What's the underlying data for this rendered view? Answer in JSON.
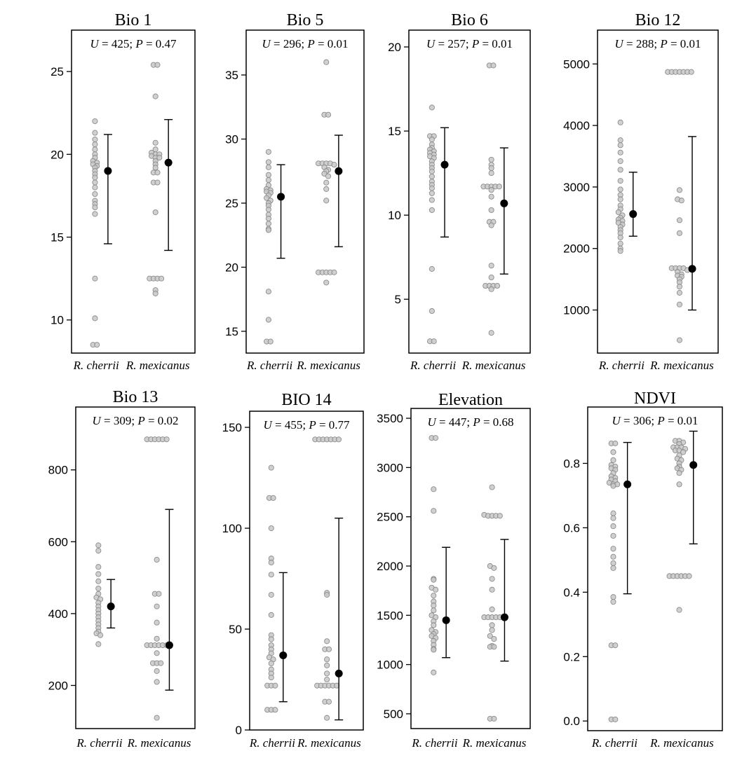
{
  "chart_data": [
    {
      "type": "scatter",
      "title": "Bio 1",
      "stat": {
        "u_label": "U",
        "u_value": "425",
        "p_label": "P",
        "p_value": "0.47"
      },
      "categories": [
        "R. cherrii",
        "R. mexicanus"
      ],
      "ylim": [
        8,
        27.5
      ],
      "yticks": [
        10,
        15,
        20,
        25
      ],
      "groups": [
        {
          "mean": 19.0,
          "error_low": 14.6,
          "error_high": 21.2,
          "points": [
            22.0,
            21.3,
            20.9,
            20.6,
            20.3,
            20.0,
            19.8,
            19.6,
            19.5,
            19.4,
            19.3,
            19.2,
            19.0,
            18.8,
            18.6,
            18.3,
            18.0,
            17.6,
            17.2,
            17.0,
            16.8,
            16.4,
            12.5,
            10.1,
            8.5,
            8.5
          ]
        },
        {
          "mean": 19.5,
          "error_low": 14.2,
          "error_high": 22.1,
          "points": [
            25.4,
            25.4,
            23.5,
            20.7,
            20.3,
            20.1,
            20.0,
            20.0,
            19.9,
            19.8,
            19.8,
            19.6,
            19.4,
            19.2,
            18.9,
            18.9,
            18.3,
            18.3,
            16.5,
            12.5,
            12.5,
            12.5,
            12.5,
            11.8,
            11.6
          ]
        }
      ]
    },
    {
      "type": "scatter",
      "title": "Bio 5",
      "stat": {
        "u_label": "U",
        "u_value": "296",
        "p_label": "P",
        "p_value": "0.01"
      },
      "categories": [
        "R. cherrii",
        "R. mexicanus"
      ],
      "ylim": [
        13.3,
        38.5
      ],
      "yticks": [
        15,
        20,
        25,
        30,
        35
      ],
      "groups": [
        {
          "mean": 25.5,
          "error_low": 20.7,
          "error_high": 28.0,
          "points": [
            29.0,
            28.2,
            27.8,
            27.2,
            26.8,
            26.4,
            26.1,
            26.0,
            25.9,
            25.8,
            25.6,
            25.4,
            25.2,
            25.0,
            24.8,
            24.5,
            24.1,
            23.8,
            23.4,
            23.0,
            22.9,
            18.1,
            15.9,
            14.2,
            14.2
          ]
        },
        {
          "mean": 27.5,
          "error_low": 21.6,
          "error_high": 30.3,
          "points": [
            36.0,
            31.9,
            31.9,
            28.1,
            28.1,
            28.1,
            28.1,
            28.0,
            27.8,
            27.6,
            27.5,
            27.3,
            27.1,
            26.6,
            26.1,
            25.2,
            19.6,
            19.6,
            19.6,
            19.6,
            19.6,
            18.8
          ]
        }
      ]
    },
    {
      "type": "scatter",
      "title": "Bio 6",
      "stat": {
        "u_label": "U",
        "u_value": "257",
        "p_label": "P",
        "p_value": "0.01"
      },
      "categories": [
        "R. cherrii",
        "R. mexicanus"
      ],
      "ylim": [
        1.8,
        21.0
      ],
      "yticks": [
        5,
        10,
        15,
        20
      ],
      "groups": [
        {
          "mean": 13.0,
          "error_low": 8.7,
          "error_high": 15.2,
          "points": [
            16.4,
            14.7,
            14.7,
            14.5,
            14.2,
            14.0,
            13.9,
            13.8,
            13.7,
            13.6,
            13.5,
            13.4,
            13.2,
            13.0,
            12.8,
            12.6,
            12.3,
            12.0,
            11.8,
            11.6,
            11.3,
            10.9,
            10.3,
            6.8,
            4.3,
            2.5,
            2.5
          ]
        },
        {
          "mean": 10.7,
          "error_low": 6.5,
          "error_high": 14.0,
          "points": [
            18.9,
            18.9,
            13.3,
            13.0,
            12.8,
            12.5,
            11.7,
            11.7,
            11.7,
            11.7,
            11.7,
            11.5,
            11.1,
            10.3,
            9.6,
            9.6,
            9.4,
            7.0,
            6.3,
            5.8,
            5.8,
            5.8,
            5.8,
            5.6,
            3.0
          ]
        }
      ]
    },
    {
      "type": "scatter",
      "title": "Bio 12",
      "stat": {
        "u_label": "U",
        "u_value": "288",
        "p_label": "P",
        "p_value": "0.01"
      },
      "categories": [
        "R. cherrii",
        "R. mexicanus"
      ],
      "ylim": [
        300,
        5550
      ],
      "yticks": [
        1000,
        2000,
        3000,
        4000,
        5000
      ],
      "groups": [
        {
          "mean": 2560,
          "error_low": 2200,
          "error_high": 3240,
          "points": [
            4050,
            3760,
            3680,
            3560,
            3420,
            3280,
            3100,
            2960,
            2870,
            2800,
            2700,
            2640,
            2590,
            2540,
            2500,
            2470,
            2450,
            2420,
            2390,
            2350,
            2300,
            2250,
            2180,
            2080,
            2000,
            1960
          ]
        },
        {
          "mean": 1670,
          "error_low": 1000,
          "error_high": 3820,
          "points": [
            4870,
            4870,
            4870,
            4870,
            4870,
            4870,
            4870,
            2950,
            2800,
            2780,
            2460,
            2250,
            1680,
            1680,
            1680,
            1680,
            1650,
            1620,
            1580,
            1560,
            1540,
            1500,
            1450,
            1380,
            1280,
            1090,
            510
          ]
        }
      ]
    },
    {
      "type": "scatter",
      "title": "Bio 13",
      "stat": {
        "u_label": "U",
        "u_value": "309",
        "p_label": "P",
        "p_value": "0.02"
      },
      "categories": [
        "R. cherrii",
        "R. mexicanus"
      ],
      "ylim": [
        80,
        975
      ],
      "yticks": [
        200,
        400,
        600,
        800
      ],
      "groups": [
        {
          "mean": 420,
          "error_low": 360,
          "error_high": 495,
          "points": [
            590,
            575,
            530,
            510,
            490,
            470,
            455,
            445,
            440,
            430,
            420,
            410,
            400,
            390,
            380,
            370,
            360,
            350,
            345,
            340,
            315
          ]
        },
        {
          "mean": 312,
          "error_low": 187,
          "error_high": 690,
          "points": [
            885,
            885,
            885,
            885,
            885,
            885,
            550,
            455,
            455,
            420,
            375,
            330,
            312,
            312,
            312,
            312,
            312,
            312,
            290,
            262,
            262,
            262,
            240,
            210,
            110
          ]
        }
      ]
    },
    {
      "type": "scatter",
      "title": "BIO 14",
      "stat": {
        "u_label": "U",
        "u_value": "455",
        "p_label": "P",
        "p_value": "0.77"
      },
      "categories": [
        "R. cherrii",
        "R. mexicanus"
      ],
      "ylim": [
        0,
        158
      ],
      "yticks": [
        0,
        50,
        100,
        150
      ],
      "groups": [
        {
          "mean": 37,
          "error_low": 14,
          "error_high": 78,
          "points": [
            130,
            115,
            115,
            100,
            85,
            83,
            77,
            67,
            57,
            47,
            45,
            42,
            40,
            38,
            36,
            35,
            33,
            30,
            28,
            26,
            22,
            22,
            22,
            10,
            10,
            10
          ]
        },
        {
          "mean": 28,
          "error_low": 5,
          "error_high": 105,
          "points": [
            144,
            144,
            144,
            144,
            144,
            144,
            144,
            68,
            67,
            44,
            40,
            40,
            35,
            32,
            28,
            25,
            22,
            22,
            22,
            22,
            22,
            22,
            14,
            14,
            6
          ]
        }
      ]
    },
    {
      "type": "scatter",
      "title": "Elevation",
      "stat": {
        "u_label": "U",
        "u_value": "447",
        "p_label": "P",
        "p_value": "0.68"
      },
      "categories": [
        "R. cherrii",
        "R. mexicanus"
      ],
      "ylim": [
        350,
        3600
      ],
      "yticks": [
        500,
        1000,
        1500,
        2000,
        2500,
        3000,
        3500
      ],
      "groups": [
        {
          "mean": 1450,
          "error_low": 1070,
          "error_high": 2190,
          "points": [
            3300,
            3300,
            2780,
            2560,
            1870,
            1860,
            1780,
            1760,
            1700,
            1640,
            1600,
            1550,
            1500,
            1480,
            1440,
            1400,
            1350,
            1330,
            1310,
            1290,
            1270,
            1240,
            1200,
            1150,
            1160,
            920
          ]
        },
        {
          "mean": 1480,
          "error_low": 1035,
          "error_high": 2270,
          "points": [
            2800,
            2520,
            2510,
            2510,
            2510,
            2510,
            2000,
            1980,
            1870,
            1760,
            1560,
            1480,
            1480,
            1480,
            1480,
            1480,
            1400,
            1350,
            1290,
            1260,
            1190,
            1180,
            1180,
            450,
            450
          ]
        }
      ]
    },
    {
      "type": "scatter",
      "title": "NDVI",
      "stat": {
        "u_label": "U",
        "u_value": "306",
        "p_label": "P",
        "p_value": "0.01"
      },
      "categories": [
        "R. cherrii",
        "R. mexicanus"
      ],
      "ylim": [
        -0.03,
        0.975
      ],
      "yticks": [
        "0.0",
        "0.2",
        "0.4",
        "0.6",
        "0.8"
      ],
      "groups": [
        {
          "mean": 0.735,
          "error_low": 0.395,
          "error_high": 0.865,
          "points": [
            0.862,
            0.862,
            0.835,
            0.81,
            0.795,
            0.79,
            0.785,
            0.78,
            0.77,
            0.76,
            0.755,
            0.75,
            0.745,
            0.74,
            0.735,
            0.735,
            0.73,
            0.645,
            0.63,
            0.605,
            0.575,
            0.535,
            0.51,
            0.49,
            0.475,
            0.385,
            0.37,
            0.235,
            0.235,
            0.005,
            0.005
          ]
        },
        {
          "mean": 0.795,
          "error_low": 0.55,
          "error_high": 0.9,
          "points": [
            0.87,
            0.87,
            0.865,
            0.86,
            0.85,
            0.85,
            0.85,
            0.845,
            0.84,
            0.84,
            0.835,
            0.825,
            0.815,
            0.81,
            0.8,
            0.79,
            0.785,
            0.78,
            0.77,
            0.735,
            0.45,
            0.45,
            0.45,
            0.45,
            0.45,
            0.45,
            0.345
          ]
        }
      ]
    }
  ]
}
